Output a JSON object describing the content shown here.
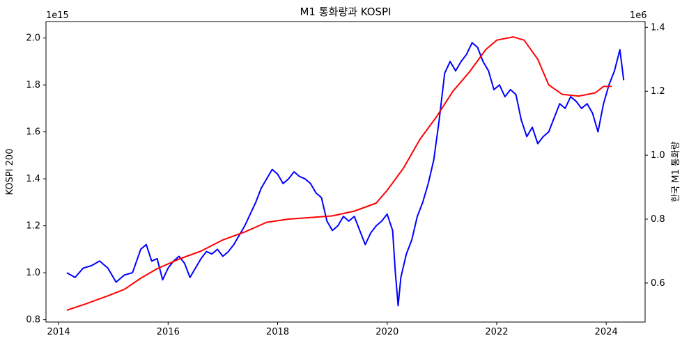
{
  "chart_data": {
    "type": "line",
    "title": "M1 통화량과 KOSPI",
    "xlabel": "",
    "x_ticks": [
      "2014",
      "2016",
      "2018",
      "2020",
      "2022",
      "2024"
    ],
    "xlim": [
      2013.77,
      2024.71
    ],
    "y_left": {
      "label": "KOSPI 200",
      "color": "#0000ff",
      "offset_text": "1e15",
      "ticks": [
        "0.8",
        "1.0",
        "1.2",
        "1.4",
        "1.6",
        "1.8",
        "2.0"
      ],
      "ylim": [
        0.79,
        2.07
      ]
    },
    "y_right": {
      "label": "한국 M1 통화량",
      "color": "#ff0000",
      "offset_text": "1e6",
      "ticks": [
        "0.6",
        "0.8",
        "1.0",
        "1.2",
        "1.4"
      ],
      "ylim": [
        0.478,
        1.418
      ]
    },
    "series": [
      {
        "axis": "left",
        "color": "#0000ff",
        "points": [
          [
            2014.15,
            1.0
          ],
          [
            2014.3,
            0.98
          ],
          [
            2014.45,
            1.02
          ],
          [
            2014.6,
            1.03
          ],
          [
            2014.75,
            1.05
          ],
          [
            2014.9,
            1.02
          ],
          [
            2015.05,
            0.96
          ],
          [
            2015.2,
            0.99
          ],
          [
            2015.35,
            1.0
          ],
          [
            2015.5,
            1.1
          ],
          [
            2015.6,
            1.12
          ],
          [
            2015.7,
            1.05
          ],
          [
            2015.8,
            1.06
          ],
          [
            2015.9,
            0.97
          ],
          [
            2016.0,
            1.02
          ],
          [
            2016.1,
            1.05
          ],
          [
            2016.2,
            1.07
          ],
          [
            2016.3,
            1.04
          ],
          [
            2016.4,
            0.98
          ],
          [
            2016.5,
            1.02
          ],
          [
            2016.6,
            1.06
          ],
          [
            2016.7,
            1.09
          ],
          [
            2016.8,
            1.08
          ],
          [
            2016.9,
            1.1
          ],
          [
            2017.0,
            1.07
          ],
          [
            2017.1,
            1.09
          ],
          [
            2017.2,
            1.12
          ],
          [
            2017.3,
            1.16
          ],
          [
            2017.4,
            1.2
          ],
          [
            2017.5,
            1.25
          ],
          [
            2017.6,
            1.3
          ],
          [
            2017.7,
            1.36
          ],
          [
            2017.8,
            1.4
          ],
          [
            2017.9,
            1.44
          ],
          [
            2018.0,
            1.42
          ],
          [
            2018.1,
            1.38
          ],
          [
            2018.2,
            1.4
          ],
          [
            2018.3,
            1.43
          ],
          [
            2018.4,
            1.41
          ],
          [
            2018.5,
            1.4
          ],
          [
            2018.6,
            1.38
          ],
          [
            2018.7,
            1.34
          ],
          [
            2018.8,
            1.32
          ],
          [
            2018.9,
            1.22
          ],
          [
            2019.0,
            1.18
          ],
          [
            2019.1,
            1.2
          ],
          [
            2019.2,
            1.24
          ],
          [
            2019.3,
            1.22
          ],
          [
            2019.4,
            1.24
          ],
          [
            2019.5,
            1.18
          ],
          [
            2019.6,
            1.12
          ],
          [
            2019.7,
            1.17
          ],
          [
            2019.8,
            1.2
          ],
          [
            2019.9,
            1.22
          ],
          [
            2020.0,
            1.25
          ],
          [
            2020.1,
            1.18
          ],
          [
            2020.15,
            1.0
          ],
          [
            2020.2,
            0.86
          ],
          [
            2020.25,
            0.98
          ],
          [
            2020.35,
            1.08
          ],
          [
            2020.45,
            1.14
          ],
          [
            2020.55,
            1.24
          ],
          [
            2020.65,
            1.3
          ],
          [
            2020.75,
            1.38
          ],
          [
            2020.85,
            1.48
          ],
          [
            2020.95,
            1.65
          ],
          [
            2021.05,
            1.85
          ],
          [
            2021.15,
            1.9
          ],
          [
            2021.25,
            1.86
          ],
          [
            2021.35,
            1.9
          ],
          [
            2021.45,
            1.93
          ],
          [
            2021.55,
            1.98
          ],
          [
            2021.65,
            1.96
          ],
          [
            2021.75,
            1.9
          ],
          [
            2021.85,
            1.86
          ],
          [
            2021.95,
            1.78
          ],
          [
            2022.05,
            1.8
          ],
          [
            2022.15,
            1.75
          ],
          [
            2022.25,
            1.78
          ],
          [
            2022.35,
            1.76
          ],
          [
            2022.45,
            1.65
          ],
          [
            2022.55,
            1.58
          ],
          [
            2022.65,
            1.62
          ],
          [
            2022.75,
            1.55
          ],
          [
            2022.85,
            1.58
          ],
          [
            2022.95,
            1.6
          ],
          [
            2023.05,
            1.66
          ],
          [
            2023.15,
            1.72
          ],
          [
            2023.25,
            1.7
          ],
          [
            2023.35,
            1.75
          ],
          [
            2023.45,
            1.73
          ],
          [
            2023.55,
            1.7
          ],
          [
            2023.65,
            1.72
          ],
          [
            2023.75,
            1.68
          ],
          [
            2023.85,
            1.6
          ],
          [
            2023.95,
            1.72
          ],
          [
            2024.05,
            1.8
          ],
          [
            2024.15,
            1.86
          ],
          [
            2024.25,
            1.95
          ],
          [
            2024.32,
            1.82
          ]
        ]
      },
      {
        "axis": "right",
        "color": "#ff0000",
        "points": [
          [
            2014.15,
            0.515
          ],
          [
            2014.5,
            0.535
          ],
          [
            2014.9,
            0.56
          ],
          [
            2015.2,
            0.58
          ],
          [
            2015.5,
            0.615
          ],
          [
            2015.8,
            0.645
          ],
          [
            2016.2,
            0.675
          ],
          [
            2016.6,
            0.7
          ],
          [
            2017.0,
            0.735
          ],
          [
            2017.4,
            0.76
          ],
          [
            2017.8,
            0.79
          ],
          [
            2018.2,
            0.8
          ],
          [
            2018.6,
            0.805
          ],
          [
            2019.0,
            0.81
          ],
          [
            2019.4,
            0.825
          ],
          [
            2019.8,
            0.85
          ],
          [
            2020.0,
            0.89
          ],
          [
            2020.3,
            0.96
          ],
          [
            2020.6,
            1.05
          ],
          [
            2020.9,
            1.12
          ],
          [
            2021.2,
            1.2
          ],
          [
            2021.5,
            1.26
          ],
          [
            2021.8,
            1.33
          ],
          [
            2022.0,
            1.36
          ],
          [
            2022.3,
            1.37
          ],
          [
            2022.5,
            1.36
          ],
          [
            2022.75,
            1.3
          ],
          [
            2022.95,
            1.22
          ],
          [
            2023.2,
            1.19
          ],
          [
            2023.5,
            1.185
          ],
          [
            2023.8,
            1.195
          ],
          [
            2023.95,
            1.215
          ],
          [
            2024.1,
            1.215
          ]
        ]
      }
    ]
  }
}
